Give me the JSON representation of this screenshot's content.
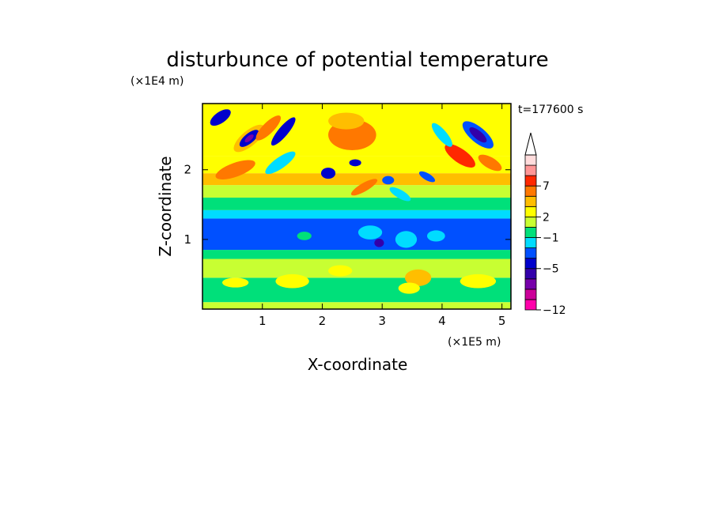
{
  "chart_data": {
    "type": "heatmap",
    "title": "disturbunce of potential temperature",
    "xlabel": "X-coordinate",
    "ylabel": "Z-coordinate",
    "x_unit": "(×1E5 m)",
    "y_unit": "(×1E4 m)",
    "time_label": "t=177600 s",
    "xlim": [
      0,
      5.15
    ],
    "ylim": [
      0,
      2.95
    ],
    "x_ticks": [
      1,
      2,
      3,
      4,
      5
    ],
    "y_ticks": [
      1,
      2
    ],
    "colorbar": {
      "levels": [
        "-12",
        "-5",
        "-1",
        "2",
        "7"
      ],
      "extend": "max",
      "colors": [
        "#ff00aa",
        "#cc0099",
        "#7700aa",
        "#3300aa",
        "#0000cc",
        "#0050ff",
        "#00dcff",
        "#00e07a",
        "#c8ff32",
        "#ffff00",
        "#ffbe00",
        "#ff7800",
        "#ff2800",
        "#ff9696",
        "#ffdcdc"
      ]
    },
    "bands": [
      {
        "zmin": 0.0,
        "zmax": 0.1,
        "level": 8
      },
      {
        "zmin": 0.1,
        "zmax": 0.45,
        "level": 7
      },
      {
        "zmin": 0.45,
        "zmax": 0.72,
        "level": 8
      },
      {
        "zmin": 0.72,
        "zmax": 0.85,
        "level": 7
      },
      {
        "zmin": 0.85,
        "zmax": 1.3,
        "level": 5
      },
      {
        "zmin": 1.3,
        "zmax": 1.42,
        "level": 6
      },
      {
        "zmin": 1.42,
        "zmax": 1.6,
        "level": 7
      },
      {
        "zmin": 1.6,
        "zmax": 1.78,
        "level": 8
      },
      {
        "zmin": 1.78,
        "zmax": 1.95,
        "level": 10
      },
      {
        "zmin": 1.95,
        "zmax": 2.2,
        "level": 9
      },
      {
        "zmin": 2.2,
        "zmax": 2.95,
        "level": 9
      }
    ],
    "features": [
      {
        "shape": "ellipse",
        "cx": 0.78,
        "cz": 2.45,
        "rx": 0.32,
        "rz": 0.11,
        "angle": 40,
        "level": 10
      },
      {
        "shape": "ellipse",
        "cx": 0.78,
        "cz": 2.45,
        "rx": 0.2,
        "rz": 0.07,
        "angle": 40,
        "level": 4
      },
      {
        "shape": "ellipse",
        "cx": 0.78,
        "cz": 2.45,
        "rx": 0.09,
        "rz": 0.035,
        "angle": 40,
        "level": 2
      },
      {
        "shape": "ellipse",
        "cx": 1.1,
        "cz": 2.6,
        "rx": 0.28,
        "rz": 0.08,
        "angle": 45,
        "level": 11
      },
      {
        "shape": "ellipse",
        "cx": 1.35,
        "cz": 2.55,
        "rx": 0.3,
        "rz": 0.07,
        "angle": 50,
        "level": 4
      },
      {
        "shape": "ellipse",
        "cx": 0.55,
        "cz": 2.0,
        "rx": 0.35,
        "rz": 0.1,
        "angle": 20,
        "level": 11
      },
      {
        "shape": "ellipse",
        "cx": 1.3,
        "cz": 2.1,
        "rx": 0.3,
        "rz": 0.08,
        "angle": 35,
        "level": 6
      },
      {
        "shape": "ellipse",
        "cx": 0.3,
        "cz": 2.75,
        "rx": 0.2,
        "rz": 0.08,
        "angle": 35,
        "level": 4
      },
      {
        "shape": "ellipse",
        "cx": 4.6,
        "cz": 2.5,
        "rx": 0.32,
        "rz": 0.11,
        "angle": -40,
        "level": 5
      },
      {
        "shape": "ellipse",
        "cx": 4.6,
        "cz": 2.5,
        "rx": 0.18,
        "rz": 0.06,
        "angle": -40,
        "level": 3
      },
      {
        "shape": "ellipse",
        "cx": 4.3,
        "cz": 2.2,
        "rx": 0.3,
        "rz": 0.1,
        "angle": -35,
        "level": 12
      },
      {
        "shape": "ellipse",
        "cx": 4.8,
        "cz": 2.1,
        "rx": 0.22,
        "rz": 0.08,
        "angle": -30,
        "level": 11
      },
      {
        "shape": "ellipse",
        "cx": 4.0,
        "cz": 2.5,
        "rx": 0.25,
        "rz": 0.07,
        "angle": -50,
        "level": 6
      },
      {
        "shape": "ellipse",
        "cx": 2.5,
        "cz": 2.5,
        "rx": 0.4,
        "rz": 0.22,
        "angle": 0,
        "level": 11
      },
      {
        "shape": "ellipse",
        "cx": 2.4,
        "cz": 2.7,
        "rx": 0.3,
        "rz": 0.12,
        "angle": 0,
        "level": 10
      },
      {
        "shape": "ellipse",
        "cx": 2.1,
        "cz": 1.95,
        "rx": 0.12,
        "rz": 0.08,
        "angle": 0,
        "level": 4
      },
      {
        "shape": "ellipse",
        "cx": 3.1,
        "cz": 1.85,
        "rx": 0.1,
        "rz": 0.06,
        "angle": 0,
        "level": 5
      },
      {
        "shape": "ellipse",
        "cx": 2.55,
        "cz": 2.1,
        "rx": 0.1,
        "rz": 0.05,
        "angle": 0,
        "level": 4
      },
      {
        "shape": "ellipse",
        "cx": 3.75,
        "cz": 1.9,
        "rx": 0.15,
        "rz": 0.05,
        "angle": -30,
        "level": 5
      },
      {
        "shape": "ellipse",
        "cx": 2.7,
        "cz": 1.75,
        "rx": 0.25,
        "rz": 0.06,
        "angle": 30,
        "level": 11
      },
      {
        "shape": "ellipse",
        "cx": 3.3,
        "cz": 1.65,
        "rx": 0.2,
        "rz": 0.06,
        "angle": -30,
        "level": 6
      },
      {
        "shape": "ellipse",
        "cx": 3.6,
        "cz": 0.45,
        "rx": 0.22,
        "rz": 0.12,
        "angle": 0,
        "level": 10
      },
      {
        "shape": "ellipse",
        "cx": 3.45,
        "cz": 0.3,
        "rx": 0.18,
        "rz": 0.08,
        "angle": 0,
        "level": 9
      },
      {
        "shape": "ellipse",
        "cx": 1.5,
        "cz": 0.4,
        "rx": 0.28,
        "rz": 0.1,
        "angle": 0,
        "level": 9
      },
      {
        "shape": "ellipse",
        "cx": 0.55,
        "cz": 0.38,
        "rx": 0.22,
        "rz": 0.07,
        "angle": 0,
        "level": 9
      },
      {
        "shape": "ellipse",
        "cx": 4.6,
        "cz": 0.4,
        "rx": 0.3,
        "rz": 0.1,
        "angle": 0,
        "level": 9
      },
      {
        "shape": "ellipse",
        "cx": 2.3,
        "cz": 0.55,
        "rx": 0.2,
        "rz": 0.08,
        "angle": 0,
        "level": 9
      },
      {
        "shape": "ellipse",
        "cx": 1.7,
        "cz": 1.05,
        "rx": 0.12,
        "rz": 0.06,
        "angle": 0,
        "level": 7
      },
      {
        "shape": "ellipse",
        "cx": 2.8,
        "cz": 1.1,
        "rx": 0.2,
        "rz": 0.1,
        "angle": 0,
        "level": 6
      },
      {
        "shape": "ellipse",
        "cx": 3.4,
        "cz": 1.0,
        "rx": 0.18,
        "rz": 0.12,
        "angle": 0,
        "level": 6
      },
      {
        "shape": "ellipse",
        "cx": 3.9,
        "cz": 1.05,
        "rx": 0.15,
        "rz": 0.08,
        "angle": 0,
        "level": 6
      },
      {
        "shape": "ellipse",
        "cx": 2.95,
        "cz": 0.95,
        "rx": 0.08,
        "rz": 0.06,
        "angle": 0,
        "level": 3
      }
    ]
  }
}
